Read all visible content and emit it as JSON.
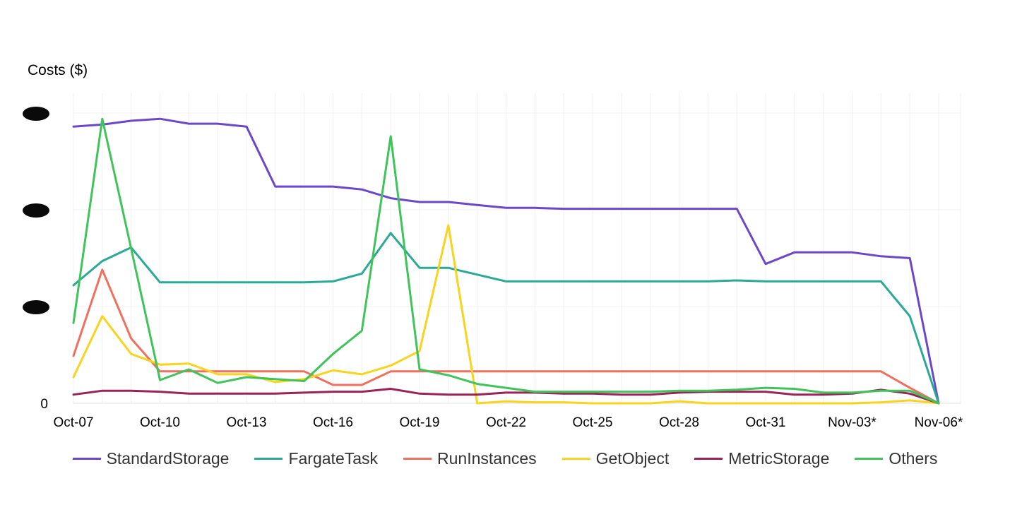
{
  "chart_data": {
    "type": "line",
    "ylabel": "Costs ($)",
    "y_tick_labels": [
      "0"
    ],
    "y_tick_labels_redacted": 3,
    "grid": true,
    "legend_position": "bottom",
    "x_tick_labels": [
      "Oct-07",
      "Oct-10",
      "Oct-13",
      "Oct-16",
      "Oct-19",
      "Oct-22",
      "Oct-25",
      "Oct-28",
      "Oct-31",
      "Nov-03*",
      "Nov-06*"
    ],
    "categories": [
      "Oct-07",
      "Oct-08",
      "Oct-09",
      "Oct-10",
      "Oct-11",
      "Oct-12",
      "Oct-13",
      "Oct-14",
      "Oct-15",
      "Oct-16",
      "Oct-17",
      "Oct-18",
      "Oct-19",
      "Oct-20",
      "Oct-21",
      "Oct-22",
      "Oct-23",
      "Oct-24",
      "Oct-25",
      "Oct-26",
      "Oct-27",
      "Oct-28",
      "Oct-29",
      "Oct-30",
      "Oct-31",
      "Nov-01",
      "Nov-02",
      "Nov-03*",
      "Nov-04",
      "Nov-05",
      "Nov-06*"
    ],
    "ylim": [
      0,
      3
    ],
    "series": [
      {
        "name": "StandardStorage",
        "color": "#6b48c8",
        "values": [
          2.86,
          2.88,
          2.92,
          2.94,
          2.89,
          2.89,
          2.86,
          2.24,
          2.24,
          2.24,
          2.21,
          2.12,
          2.08,
          2.08,
          2.05,
          2.02,
          2.02,
          2.01,
          2.01,
          2.01,
          2.01,
          2.01,
          2.01,
          2.01,
          1.44,
          1.56,
          1.56,
          1.56,
          1.52,
          1.5,
          0.0
        ]
      },
      {
        "name": "FargateTask",
        "color": "#2aaa96",
        "values": [
          1.22,
          1.47,
          1.61,
          1.25,
          1.25,
          1.25,
          1.25,
          1.25,
          1.25,
          1.26,
          1.34,
          1.76,
          1.4,
          1.4,
          1.33,
          1.26,
          1.26,
          1.26,
          1.26,
          1.26,
          1.26,
          1.26,
          1.26,
          1.27,
          1.26,
          1.26,
          1.26,
          1.26,
          1.26,
          0.9,
          0.0
        ]
      },
      {
        "name": "RunInstances",
        "color": "#f07060",
        "values": [
          0.49,
          1.38,
          0.67,
          0.33,
          0.33,
          0.33,
          0.33,
          0.33,
          0.33,
          0.19,
          0.19,
          0.33,
          0.33,
          0.33,
          0.33,
          0.33,
          0.33,
          0.33,
          0.33,
          0.33,
          0.33,
          0.33,
          0.33,
          0.33,
          0.33,
          0.33,
          0.33,
          0.33,
          0.33,
          0.16,
          0.0
        ]
      },
      {
        "name": "GetObject",
        "color": "#f8d41e",
        "values": [
          0.27,
          0.9,
          0.51,
          0.4,
          0.41,
          0.3,
          0.3,
          0.22,
          0.25,
          0.34,
          0.3,
          0.39,
          0.54,
          1.84,
          0.0,
          0.02,
          0.01,
          0.01,
          0.0,
          0.0,
          0.0,
          0.02,
          0.0,
          0.0,
          0.0,
          0.0,
          0.0,
          0.0,
          0.01,
          0.03,
          0.0
        ]
      },
      {
        "name": "MetricStorage",
        "color": "#9a2456",
        "values": [
          0.09,
          0.13,
          0.13,
          0.12,
          0.1,
          0.1,
          0.1,
          0.1,
          0.11,
          0.12,
          0.12,
          0.15,
          0.1,
          0.09,
          0.09,
          0.11,
          0.11,
          0.1,
          0.1,
          0.09,
          0.09,
          0.11,
          0.12,
          0.12,
          0.12,
          0.09,
          0.09,
          0.1,
          0.14,
          0.1,
          0.0
        ]
      },
      {
        "name": "Others",
        "color": "#3ec45a",
        "values": [
          0.83,
          2.94,
          1.6,
          0.24,
          0.35,
          0.21,
          0.27,
          0.25,
          0.23,
          0.51,
          0.75,
          2.76,
          0.35,
          0.29,
          0.2,
          0.16,
          0.12,
          0.12,
          0.12,
          0.12,
          0.12,
          0.13,
          0.13,
          0.14,
          0.16,
          0.15,
          0.11,
          0.11,
          0.13,
          0.13,
          0.0
        ]
      }
    ]
  }
}
